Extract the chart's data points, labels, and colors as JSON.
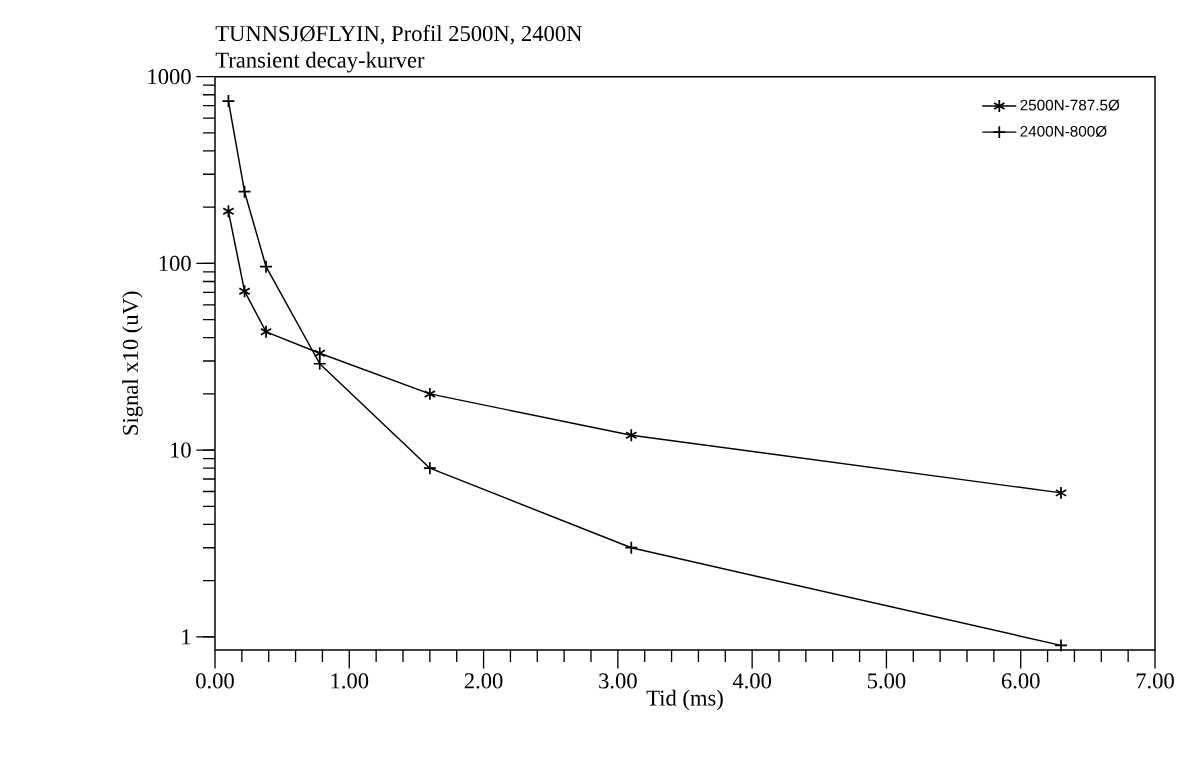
{
  "chart_data": {
    "type": "line",
    "title": "TUNNSJØFLYIN,  Profil 2500N, 2400N",
    "subtitle": "Transient decay-kurver",
    "xlabel": "Tid (ms)",
    "ylabel": "Signal x10 (uV)",
    "x": [
      0.1,
      0.22,
      0.38,
      0.78,
      1.6,
      3.1,
      6.3
    ],
    "series": [
      {
        "name": "2500N-787.5Ø",
        "color": "#000000",
        "marker": "cross",
        "values": [
          190,
          71,
          43,
          33,
          20,
          12,
          5.9
        ]
      },
      {
        "name": "2400N-800Ø",
        "color": "#000000",
        "marker": "cross",
        "values": [
          740,
          242,
          96,
          29,
          8,
          3,
          0.9
        ]
      }
    ],
    "log": "y",
    "xlim": [
      0,
      7
    ],
    "ylim": [
      0.85,
      1000
    ],
    "xticks": [
      {
        "value": 0,
        "label": "0.00"
      },
      {
        "value": 1,
        "label": "1.00"
      },
      {
        "value": 2,
        "label": "2.00"
      },
      {
        "value": 3,
        "label": "3.00"
      },
      {
        "value": 4,
        "label": "4.00"
      },
      {
        "value": 5,
        "label": "5.00"
      },
      {
        "value": 6,
        "label": "6.00"
      },
      {
        "value": 7,
        "label": "7.00"
      }
    ],
    "yticks": [
      1,
      10,
      100,
      1000
    ],
    "grid": false,
    "legend": "top right",
    "line_style": "solid"
  }
}
